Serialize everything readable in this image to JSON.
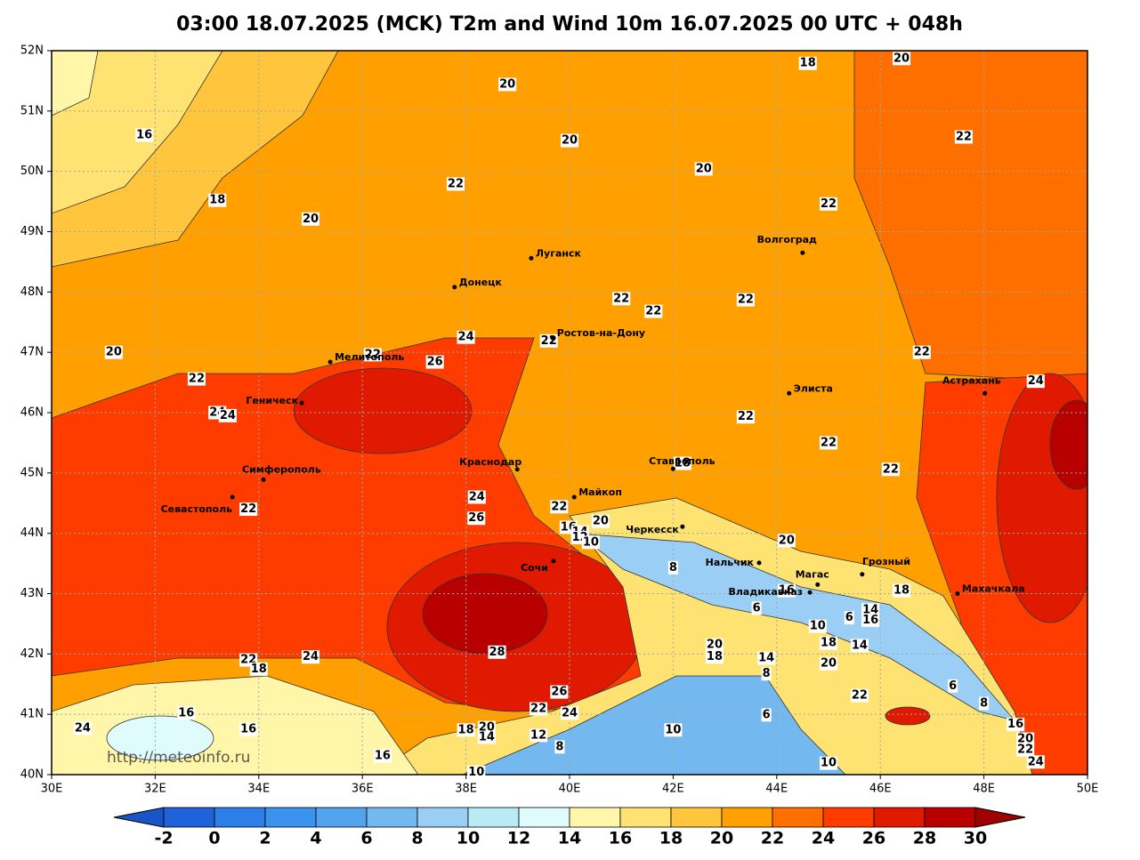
{
  "map": {
    "title": "03:00 18.07.2025 (MCK) T2m and Wind 10m 16.07.2025 00 UTC + 048h",
    "watermark": "http://meteoinfo.ru",
    "lon_range": [
      30,
      50
    ],
    "lat_range": [
      40,
      52
    ],
    "grid": true,
    "lon_ticks": [
      {
        "value": 30,
        "label": "30E"
      },
      {
        "value": 32,
        "label": "32E"
      },
      {
        "value": 34,
        "label": "34E"
      },
      {
        "value": 36,
        "label": "36E"
      },
      {
        "value": 38,
        "label": "38E"
      },
      {
        "value": 40,
        "label": "40E"
      },
      {
        "value": 42,
        "label": "42E"
      },
      {
        "value": 44,
        "label": "44E"
      },
      {
        "value": 46,
        "label": "46E"
      },
      {
        "value": 48,
        "label": "48E"
      },
      {
        "value": 50,
        "label": "50E"
      }
    ],
    "lat_ticks": [
      {
        "value": 40,
        "label": "40N"
      },
      {
        "value": 41,
        "label": "41N"
      },
      {
        "value": 42,
        "label": "42N"
      },
      {
        "value": 43,
        "label": "43N"
      },
      {
        "value": 44,
        "label": "44N"
      },
      {
        "value": 45,
        "label": "45N"
      },
      {
        "value": 46,
        "label": "46N"
      },
      {
        "value": 47,
        "label": "47N"
      },
      {
        "value": 48,
        "label": "48N"
      },
      {
        "value": 49,
        "label": "49N"
      },
      {
        "value": 50,
        "label": "50N"
      },
      {
        "value": 51,
        "label": "51N"
      },
      {
        "value": 52,
        "label": "52N"
      }
    ],
    "cities": [
      {
        "name": "Луганск",
        "lon": 39.26,
        "lat": 48.56
      },
      {
        "name": "Донецк",
        "lon": 37.78,
        "lat": 48.08
      },
      {
        "name": "Волгоград",
        "lon": 44.5,
        "lat": 48.65
      },
      {
        "name": "Ростов-на-Дону",
        "lon": 39.67,
        "lat": 47.24
      },
      {
        "name": "Мелитополь",
        "lon": 35.38,
        "lat": 46.84
      },
      {
        "name": "Геническ",
        "lon": 34.83,
        "lat": 46.16
      },
      {
        "name": "Элиста",
        "lon": 44.24,
        "lat": 46.32
      },
      {
        "name": "Астрахань",
        "lon": 48.02,
        "lat": 46.32
      },
      {
        "name": "Симферополь",
        "lon": 34.09,
        "lat": 44.89
      },
      {
        "name": "Севастополь",
        "lon": 33.49,
        "lat": 44.6
      },
      {
        "name": "Краснодар",
        "lon": 38.99,
        "lat": 45.06
      },
      {
        "name": "Ставрополь",
        "lon": 42.0,
        "lat": 45.07
      },
      {
        "name": "Майкоп",
        "lon": 40.09,
        "lat": 44.6
      },
      {
        "name": "Черкесск",
        "lon": 42.18,
        "lat": 44.11
      },
      {
        "name": "Сочи",
        "lon": 39.69,
        "lat": 43.54
      },
      {
        "name": "Нальчик",
        "lon": 43.66,
        "lat": 43.51
      },
      {
        "name": "Магас",
        "lon": 44.79,
        "lat": 43.15
      },
      {
        "name": "Владикавказ",
        "lon": 44.64,
        "lat": 43.02
      },
      {
        "name": "Грозный",
        "lon": 45.65,
        "lat": 43.32
      },
      {
        "name": "Махачкала",
        "lon": 47.49,
        "lat": 43.0
      }
    ],
    "contour_labels": [
      {
        "value": 20,
        "lon": 38.8,
        "lat": 51.44
      },
      {
        "value": 18,
        "lon": 44.6,
        "lat": 51.79
      },
      {
        "value": 20,
        "lon": 46.41,
        "lat": 51.87
      },
      {
        "value": 16,
        "lon": 31.79,
        "lat": 50.6
      },
      {
        "value": 20,
        "lon": 40.0,
        "lat": 50.51
      },
      {
        "value": 22,
        "lon": 47.61,
        "lat": 50.57
      },
      {
        "value": 20,
        "lon": 42.59,
        "lat": 50.04
      },
      {
        "value": 22,
        "lon": 37.8,
        "lat": 49.79
      },
      {
        "value": 18,
        "lon": 33.2,
        "lat": 49.52
      },
      {
        "value": 20,
        "lon": 35.0,
        "lat": 49.21
      },
      {
        "value": 22,
        "lon": 45.0,
        "lat": 49.46
      },
      {
        "value": 22,
        "lon": 41.0,
        "lat": 47.89
      },
      {
        "value": 22,
        "lon": 41.62,
        "lat": 47.68
      },
      {
        "value": 22,
        "lon": 43.4,
        "lat": 47.87
      },
      {
        "value": 24,
        "lon": 38.0,
        "lat": 47.25
      },
      {
        "value": 22,
        "lon": 39.6,
        "lat": 47.19
      },
      {
        "value": 20,
        "lon": 31.2,
        "lat": 47.0
      },
      {
        "value": 22,
        "lon": 36.2,
        "lat": 46.96
      },
      {
        "value": 26,
        "lon": 37.4,
        "lat": 46.84
      },
      {
        "value": 22,
        "lon": 32.8,
        "lat": 46.56
      },
      {
        "value": 24,
        "lon": 33.2,
        "lat": 46.0
      },
      {
        "value": 24,
        "lon": 33.4,
        "lat": 45.95
      },
      {
        "value": 22,
        "lon": 43.4,
        "lat": 45.93
      },
      {
        "value": 22,
        "lon": 45.0,
        "lat": 45.5
      },
      {
        "value": 22,
        "lon": 46.8,
        "lat": 47.0
      },
      {
        "value": 24,
        "lon": 49.0,
        "lat": 46.52
      },
      {
        "value": 22,
        "lon": 46.2,
        "lat": 45.06
      },
      {
        "value": 18,
        "lon": 42.18,
        "lat": 45.16
      },
      {
        "value": 24,
        "lon": 38.21,
        "lat": 44.6
      },
      {
        "value": 26,
        "lon": 38.2,
        "lat": 44.25
      },
      {
        "value": 22,
        "lon": 33.8,
        "lat": 44.4
      },
      {
        "value": 22,
        "lon": 39.8,
        "lat": 44.44
      },
      {
        "value": 20,
        "lon": 40.6,
        "lat": 44.2
      },
      {
        "value": 16,
        "lon": 39.98,
        "lat": 44.1
      },
      {
        "value": 14,
        "lon": 40.2,
        "lat": 44.02
      },
      {
        "value": 12,
        "lon": 40.2,
        "lat": 43.93
      },
      {
        "value": 10,
        "lon": 40.41,
        "lat": 43.85
      },
      {
        "value": 20,
        "lon": 44.19,
        "lat": 43.88
      },
      {
        "value": 8,
        "lon": 42.0,
        "lat": 43.43
      },
      {
        "value": 16,
        "lon": 44.19,
        "lat": 43.05
      },
      {
        "value": 18,
        "lon": 46.41,
        "lat": 43.05
      },
      {
        "value": 6,
        "lon": 43.61,
        "lat": 42.76
      },
      {
        "value": 6,
        "lon": 45.4,
        "lat": 42.6
      },
      {
        "value": 14,
        "lon": 45.81,
        "lat": 42.73
      },
      {
        "value": 16,
        "lon": 45.81,
        "lat": 42.56
      },
      {
        "value": 10,
        "lon": 44.79,
        "lat": 42.46
      },
      {
        "value": 18,
        "lon": 45.0,
        "lat": 42.18
      },
      {
        "value": 14,
        "lon": 45.6,
        "lat": 42.14
      },
      {
        "value": 20,
        "lon": 42.8,
        "lat": 42.15
      },
      {
        "value": 18,
        "lon": 42.8,
        "lat": 41.95
      },
      {
        "value": 14,
        "lon": 43.8,
        "lat": 41.93
      },
      {
        "value": 20,
        "lon": 45.0,
        "lat": 41.84
      },
      {
        "value": 8,
        "lon": 43.8,
        "lat": 41.67
      },
      {
        "value": 28,
        "lon": 38.6,
        "lat": 42.03
      },
      {
        "value": 22,
        "lon": 33.8,
        "lat": 41.9
      },
      {
        "value": 18,
        "lon": 34.0,
        "lat": 41.75
      },
      {
        "value": 24,
        "lon": 35.0,
        "lat": 41.95
      },
      {
        "value": 6,
        "lon": 47.4,
        "lat": 41.47
      },
      {
        "value": 22,
        "lon": 45.6,
        "lat": 41.31
      },
      {
        "value": 26,
        "lon": 39.8,
        "lat": 41.37
      },
      {
        "value": 8,
        "lon": 48.0,
        "lat": 41.18
      },
      {
        "value": 16,
        "lon": 32.6,
        "lat": 41.02
      },
      {
        "value": 22,
        "lon": 39.4,
        "lat": 41.09
      },
      {
        "value": 24,
        "lon": 40.0,
        "lat": 41.02
      },
      {
        "value": 6,
        "lon": 43.8,
        "lat": 40.99
      },
      {
        "value": 24,
        "lon": 30.6,
        "lat": 40.77
      },
      {
        "value": 16,
        "lon": 33.8,
        "lat": 40.75
      },
      {
        "value": 18,
        "lon": 38.0,
        "lat": 40.74
      },
      {
        "value": 20,
        "lon": 38.4,
        "lat": 40.78
      },
      {
        "value": 14,
        "lon": 38.4,
        "lat": 40.62
      },
      {
        "value": 12,
        "lon": 39.4,
        "lat": 40.65
      },
      {
        "value": 10,
        "lon": 42.0,
        "lat": 40.74
      },
      {
        "value": 16,
        "lon": 48.61,
        "lat": 40.83
      },
      {
        "value": 20,
        "lon": 48.8,
        "lat": 40.59
      },
      {
        "value": 22,
        "lon": 48.8,
        "lat": 40.41
      },
      {
        "value": 24,
        "lon": 49.0,
        "lat": 40.21
      },
      {
        "value": 8,
        "lon": 39.81,
        "lat": 40.46
      },
      {
        "value": 16,
        "lon": 36.39,
        "lat": 40.31
      },
      {
        "value": 10,
        "lon": 38.2,
        "lat": 40.04
      },
      {
        "value": 10,
        "lon": 45.0,
        "lat": 40.19
      }
    ],
    "colorbar": {
      "levels": [
        -2,
        0,
        2,
        4,
        6,
        8,
        10,
        12,
        14,
        16,
        18,
        20,
        22,
        24,
        26,
        28,
        30
      ],
      "colors": [
        "#1f62d9",
        "#2d7ee8",
        "#3c92ef",
        "#52a4ee",
        "#74b8f0",
        "#9bcef5",
        "#b9ebf5",
        "#e0fbfb",
        "#fff6aa",
        "#ffe372",
        "#ffc53c",
        "#ff9f00",
        "#ff6f00",
        "#ff3c00",
        "#e01a00",
        "#b80000"
      ],
      "under_color": "#1a55c8",
      "over_color": "#a00000"
    }
  }
}
